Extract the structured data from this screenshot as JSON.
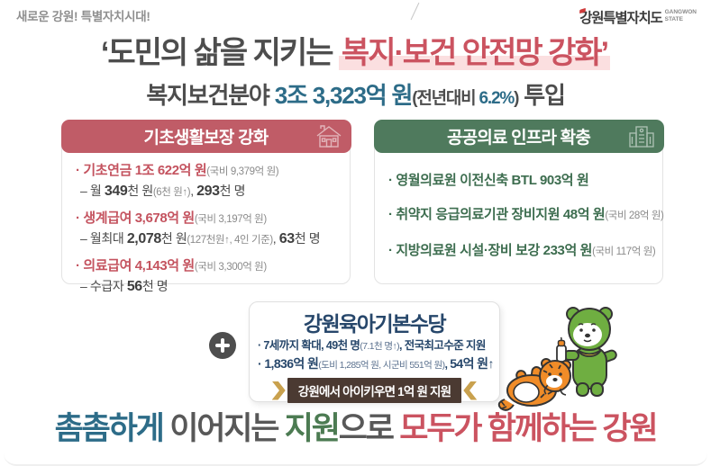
{
  "colors": {
    "rose_header": "#c05c67",
    "rose_text": "#c4535f",
    "green_header": "#4f7a5d",
    "green_text": "#3d6d4f",
    "teal": "#2d6c88",
    "navy": "#27476b",
    "dark": "#4d4d4d",
    "highlight_pink": "#fbdfe0",
    "ribbon_brown": "#4b3a32",
    "ribbon_gold": "#c9a14e"
  },
  "header": {
    "slogan": "새로운 강원! 특별자치시대!",
    "logo": {
      "name": "강원특별자치도",
      "sub1": "GANGWON",
      "sub2": "STATE"
    }
  },
  "title": {
    "runs": [
      {
        "t": "‘도민의 삶을 지키는 ",
        "s": "tt-dark"
      },
      {
        "t": "복지·보건 안전망 강화’",
        "s": "tt-red"
      }
    ]
  },
  "subtitle": {
    "runs": [
      {
        "t": "복지보건분야 ",
        "s": "st-dark"
      },
      {
        "t": "3조 3,323억 원",
        "s": "st-teal"
      },
      {
        "t": "(전년대비 ",
        "s": "st-dark-sm"
      },
      {
        "t": "6.2%",
        "s": "st-teal-sm"
      },
      {
        "t": ")",
        "s": "st-dark-sm"
      },
      {
        "t": " 투입",
        "s": "st-dark"
      }
    ]
  },
  "card_left": {
    "header": "기초생활보장 강화",
    "items": [
      {
        "main": [
          {
            "t": "· 기초연금 1조 622억 원",
            "s": "b-rose"
          },
          {
            "t": "(국비 9,379억 원)",
            "s": "sm"
          }
        ],
        "sub": [
          {
            "t": "– 월 ",
            "s": "d"
          },
          {
            "t": "349",
            "s": "d-b"
          },
          {
            "t": "천 원",
            "s": "d"
          },
          {
            "t": "(6천 원↑)",
            "s": "sm"
          },
          {
            "t": ", ",
            "s": "d"
          },
          {
            "t": "293",
            "s": "d-b"
          },
          {
            "t": "천 명",
            "s": "d"
          }
        ]
      },
      {
        "main": [
          {
            "t": "· 생계급여 3,678억 원",
            "s": "b-rose"
          },
          {
            "t": "(국비 3,197억 원)",
            "s": "sm"
          }
        ],
        "sub": [
          {
            "t": "– 월최대 ",
            "s": "d"
          },
          {
            "t": "2,078",
            "s": "d-b"
          },
          {
            "t": "천 원",
            "s": "d"
          },
          {
            "t": "(127천원↑, 4인 기준)",
            "s": "sm"
          },
          {
            "t": ", ",
            "s": "d"
          },
          {
            "t": "63",
            "s": "d-b"
          },
          {
            "t": "천 명",
            "s": "d"
          }
        ]
      },
      {
        "main": [
          {
            "t": "· 의료급여 4,143억 원",
            "s": "b-rose"
          },
          {
            "t": "(국비 3,300억 원)",
            "s": "sm"
          }
        ],
        "sub": [
          {
            "t": "– 수급자 ",
            "s": "d"
          },
          {
            "t": "56",
            "s": "d-b"
          },
          {
            "t": "천 명",
            "s": "d"
          }
        ]
      }
    ]
  },
  "card_right": {
    "header": "공공의료 인프라 확충",
    "items": [
      {
        "main": [
          {
            "t": "· 영월의료원 이전신축 BTL 903억 원",
            "s": "b-green"
          }
        ]
      },
      {
        "main": [
          {
            "t": "· 취약지 응급의료기관 장비지원 48억 원",
            "s": "b-green"
          },
          {
            "t": "(국비 28억 원)",
            "s": "sm"
          }
        ]
      },
      {
        "main": [
          {
            "t": "· 지방의료원 시설·장비 보강 233억 원",
            "s": "b-green"
          },
          {
            "t": "(국비 117억 원)",
            "s": "sm"
          }
        ]
      }
    ]
  },
  "allowance_box": {
    "title": "강원육아기본수당",
    "line1": [
      {
        "t": "· 7세까지 확대, 49천 명",
        "s": "n-b"
      },
      {
        "t": "(7.1천 명↑)",
        "s": "n-sm"
      },
      {
        "t": ", 전국최고수준 지원",
        "s": "n-b"
      }
    ],
    "line2": [
      {
        "t": "· 1,836억 원",
        "s": "n-bb"
      },
      {
        "t": "(도비 1,285억 원, 시군비 551억 원)",
        "s": "n-sm"
      },
      {
        "t": ", ",
        "s": "n-b"
      },
      {
        "t": "54억 원↑",
        "s": "n-bb"
      }
    ],
    "badge": "강원에서 아이키우면 1억 원 지원"
  },
  "tagline": {
    "runs": [
      {
        "t": "촘촘하게",
        "s": "t-teal"
      },
      {
        "t": " 이어지는 ",
        "s": "t-gray"
      },
      {
        "t": "지원",
        "s": "t-green"
      },
      {
        "t": "으로 ",
        "s": "t-gray"
      },
      {
        "t": "모두가 함께하는 강원",
        "s": "t-rose"
      }
    ]
  }
}
